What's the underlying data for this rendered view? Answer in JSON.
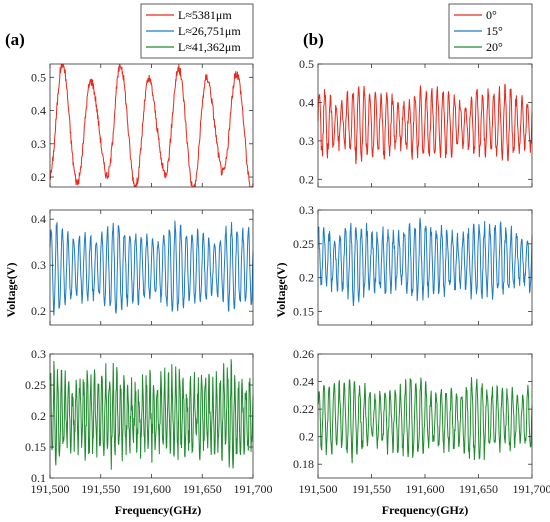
{
  "figure": {
    "panel_labels": [
      "(a)",
      "(b)"
    ],
    "ylabel": "Voltage(V)",
    "xlabel": "Frequency(GHz)"
  },
  "chart_data": [
    {
      "type": "line",
      "panel": "(a)",
      "row": 1,
      "xlim": [
        191500,
        191700
      ],
      "ylim": [
        0.17,
        0.54
      ],
      "yticks": [
        0.2,
        0.3,
        0.4,
        0.5
      ],
      "series": [
        {
          "name": "L≈5381μm",
          "color": "#e8291c",
          "center": 0.35,
          "amplitude": 0.16,
          "cycles": 7,
          "phase": -1.2,
          "noise": 0.015
        }
      ],
      "legend": {
        "placement": "top-right",
        "entries": [
          "L≈5381μm",
          "L≈26,751μm",
          "L≈41,362μm"
        ],
        "colors": [
          "#e8291c",
          "#1f7bc1",
          "#1f8a2e"
        ]
      }
    },
    {
      "type": "line",
      "panel": "(a)",
      "row": 2,
      "xlim": [
        191500,
        191700
      ],
      "ylim": [
        0.17,
        0.42
      ],
      "yticks": [
        0.2,
        0.3,
        0.4
      ],
      "series": [
        {
          "name": "L≈26,751μm",
          "color": "#1f7bc1",
          "center": 0.295,
          "amplitude": 0.075,
          "cycles": 36,
          "phase": 0.4,
          "noise": 0.012
        }
      ]
    },
    {
      "type": "line",
      "panel": "(a)",
      "row": 3,
      "xlim": [
        191500,
        191700
      ],
      "ylim": [
        0.1,
        0.3
      ],
      "yticks": [
        0.1,
        0.15,
        0.2,
        0.25,
        0.3
      ],
      "series": [
        {
          "name": "L≈41,362μm",
          "color": "#1f8a2e",
          "center": 0.2,
          "amplitude": 0.055,
          "cycles": 55,
          "phase": 1.0,
          "noise": 0.025
        }
      ]
    },
    {
      "type": "line",
      "panel": "(b)",
      "row": 1,
      "xlim": [
        191500,
        191700
      ],
      "ylim": [
        0.18,
        0.5
      ],
      "yticks": [
        0.2,
        0.3,
        0.4,
        0.5
      ],
      "series": [
        {
          "name": "0°",
          "color": "#e8291c",
          "center": 0.345,
          "amplitude": 0.075,
          "cycles": 38,
          "phase": 0.2,
          "noise": 0.02
        }
      ],
      "legend": {
        "placement": "top-right",
        "entries": [
          "0°",
          "15°",
          "20°"
        ],
        "colors": [
          "#e8291c",
          "#1f7bc1",
          "#1f8a2e"
        ]
      }
    },
    {
      "type": "line",
      "panel": "(b)",
      "row": 2,
      "xlim": [
        191500,
        191700
      ],
      "ylim": [
        0.13,
        0.3
      ],
      "yticks": [
        0.15,
        0.2,
        0.25,
        0.3
      ],
      "series": [
        {
          "name": "15°",
          "color": "#1f7bc1",
          "center": 0.225,
          "amplitude": 0.045,
          "cycles": 40,
          "phase": 0.9,
          "noise": 0.012
        }
      ]
    },
    {
      "type": "line",
      "panel": "(b)",
      "row": 3,
      "xlim": [
        191500,
        191700
      ],
      "ylim": [
        0.17,
        0.26
      ],
      "yticks": [
        0.18,
        0.2,
        0.22,
        0.24,
        0.26
      ],
      "series": [
        {
          "name": "20°",
          "color": "#1f8a2e",
          "center": 0.213,
          "amplitude": 0.022,
          "cycles": 42,
          "phase": 0.5,
          "noise": 0.006
        }
      ]
    }
  ],
  "xticks": [
    "191,500",
    "191,550",
    "191,600",
    "191,650",
    "191,700"
  ]
}
